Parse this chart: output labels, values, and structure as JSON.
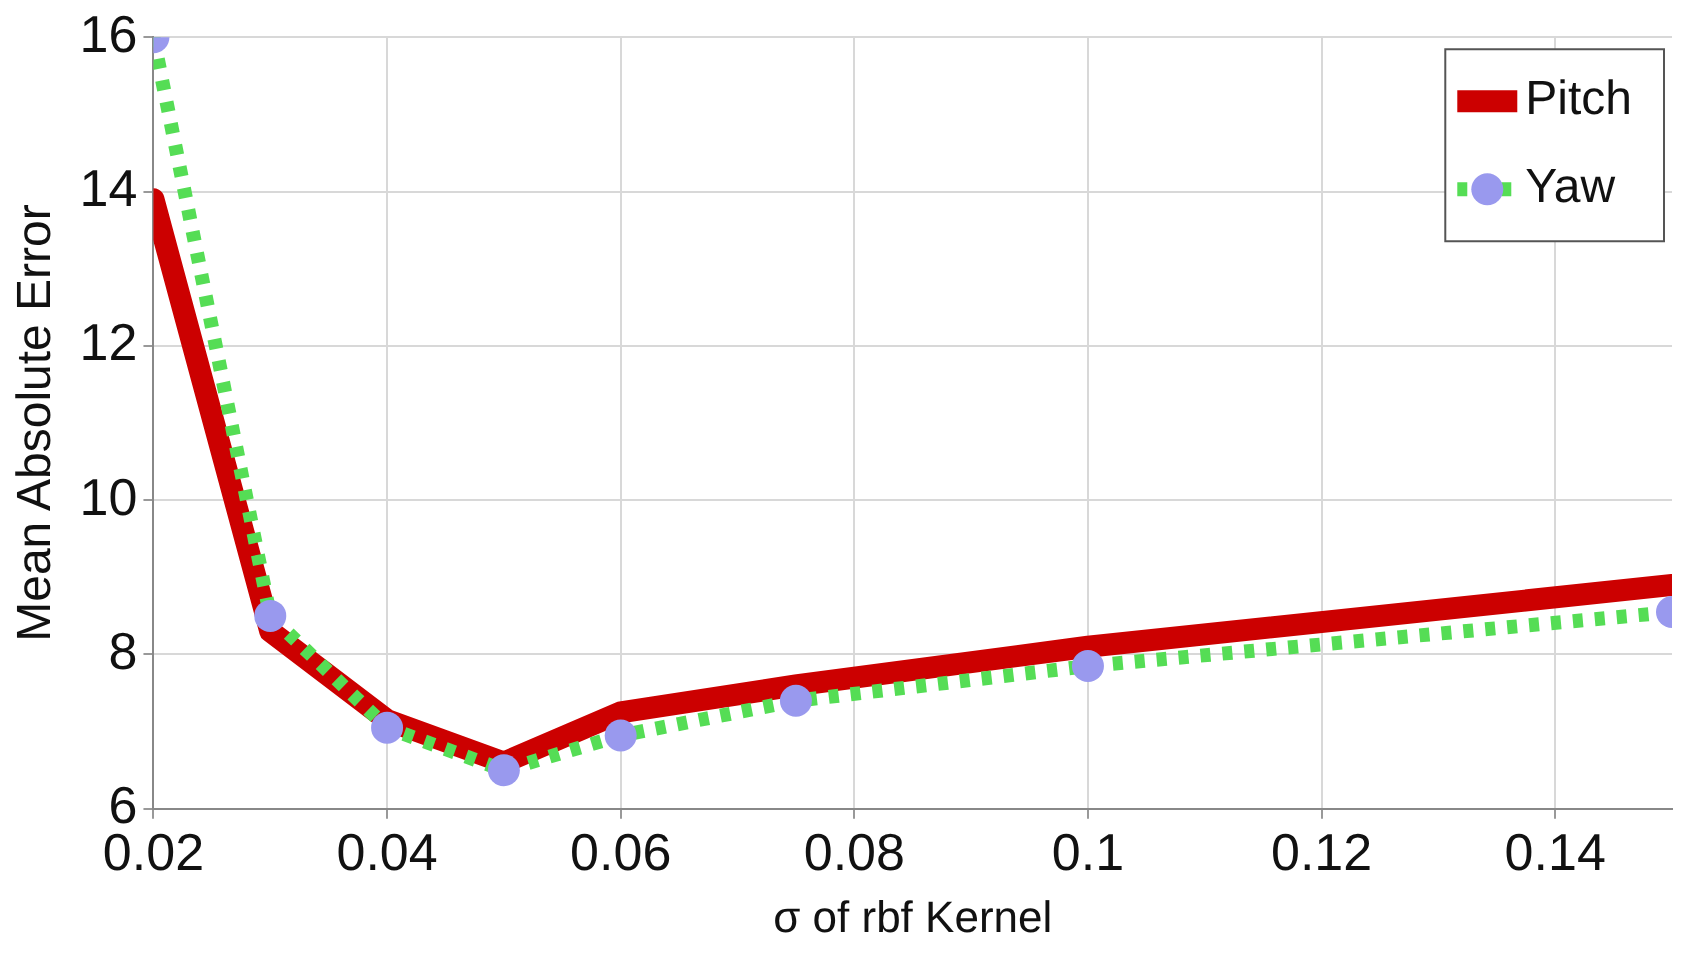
{
  "chart_data": {
    "type": "line",
    "xlabel": "σ of rbf Kernel",
    "ylabel": "Mean Absolute Error",
    "x": [
      0.02,
      0.03,
      0.04,
      0.05,
      0.06,
      0.075,
      0.1,
      0.15
    ],
    "series": [
      {
        "name": "Pitch",
        "color": "#cc0000",
        "values": [
          13.9,
          8.3,
          7.15,
          6.6,
          7.25,
          7.6,
          8.1,
          8.9
        ],
        "marker": "none",
        "line_style": "solid"
      },
      {
        "name": "Yaw",
        "color": "#55dd55",
        "values": [
          16,
          8.5,
          7.05,
          6.5,
          6.95,
          7.4,
          7.85,
          8.55
        ],
        "marker": "circle",
        "line_style": "dotted"
      }
    ],
    "xlim": [
      0.02,
      0.15
    ],
    "xticks": [
      0.02,
      0.04,
      0.06,
      0.08,
      0.1,
      0.12,
      0.14
    ],
    "ylim": [
      6,
      16
    ],
    "yticks": [
      6,
      8,
      10,
      12,
      14,
      16
    ],
    "grid": true,
    "legend": "top right"
  }
}
